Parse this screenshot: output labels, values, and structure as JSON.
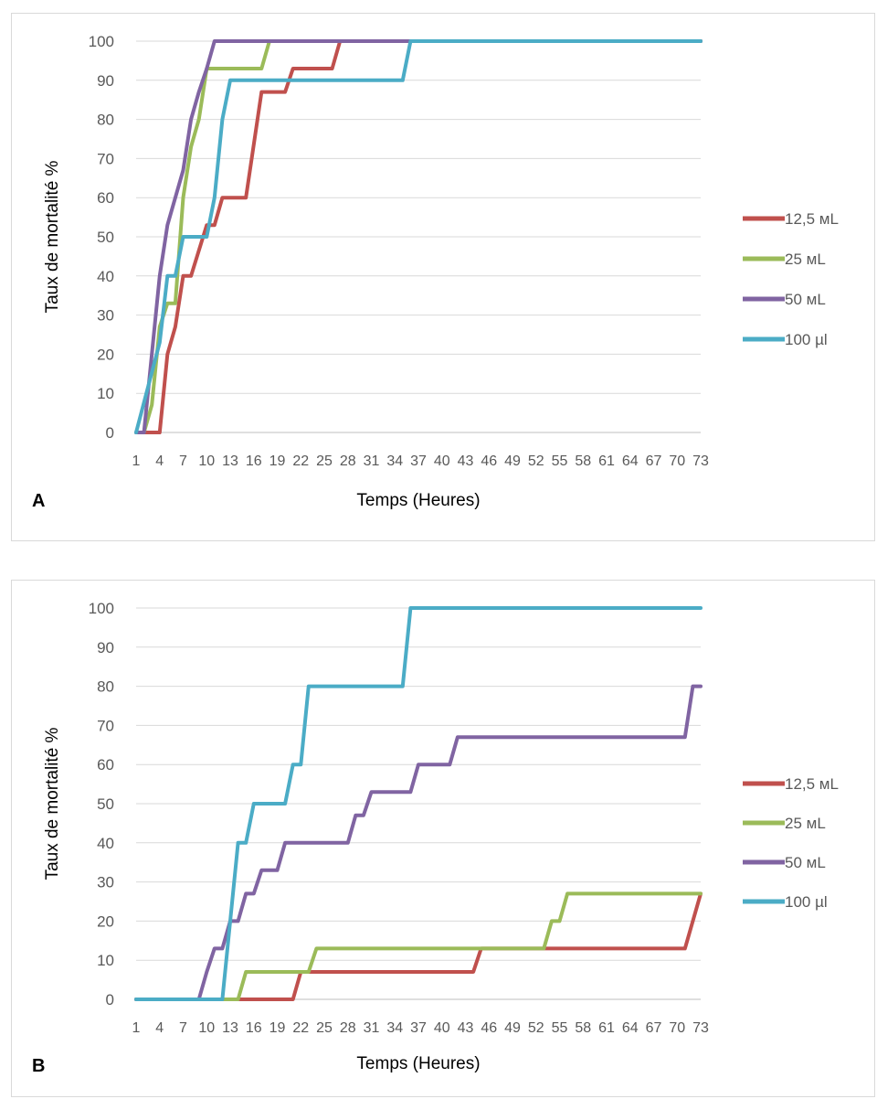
{
  "chart_data": [
    {
      "id": "A",
      "type": "line",
      "panel_label": "A",
      "title": "",
      "xlabel": "Temps (Heures)",
      "ylabel": "Taux de mortalité %",
      "ylim": [
        0,
        100
      ],
      "yticks": [
        0,
        10,
        20,
        30,
        40,
        50,
        60,
        70,
        80,
        90,
        100
      ],
      "xlim": [
        1,
        73
      ],
      "xtick_labels": [
        "1",
        "4",
        "7",
        "10",
        "13",
        "16",
        "19",
        "22",
        "25",
        "28",
        "31",
        "34",
        "37",
        "40",
        "43",
        "46",
        "49",
        "52",
        "55",
        "58",
        "61",
        "64",
        "67",
        "70",
        "73"
      ],
      "grid": true,
      "legend_position": "right",
      "series": [
        {
          "name": "12,5 ᴍL",
          "color": "#c0504d",
          "points": [
            [
              1,
              0
            ],
            [
              2,
              0
            ],
            [
              4,
              0
            ],
            [
              5,
              20
            ],
            [
              6,
              27
            ],
            [
              7,
              40
            ],
            [
              8,
              40
            ],
            [
              10,
              53
            ],
            [
              11,
              53
            ],
            [
              12,
              60
            ],
            [
              15,
              60
            ],
            [
              17,
              87
            ],
            [
              20,
              87
            ],
            [
              21,
              93
            ],
            [
              26,
              93
            ],
            [
              27,
              100
            ],
            [
              73,
              100
            ]
          ]
        },
        {
          "name": "25 ᴍL",
          "color": "#9bbb59",
          "points": [
            [
              1,
              0
            ],
            [
              2,
              0
            ],
            [
              3,
              7
            ],
            [
              4,
              27
            ],
            [
              5,
              33
            ],
            [
              6,
              33
            ],
            [
              7,
              60
            ],
            [
              8,
              73
            ],
            [
              9,
              80
            ],
            [
              10,
              93
            ],
            [
              11,
              93
            ],
            [
              17,
              93
            ],
            [
              18,
              100
            ],
            [
              73,
              100
            ]
          ]
        },
        {
          "name": "50 ᴍL",
          "color": "#8064a2",
          "points": [
            [
              1,
              0
            ],
            [
              2,
              0
            ],
            [
              4,
              40
            ],
            [
              5,
              53
            ],
            [
              6,
              60
            ],
            [
              7,
              67
            ],
            [
              8,
              80
            ],
            [
              9,
              87
            ],
            [
              10,
              93
            ],
            [
              11,
              100
            ],
            [
              73,
              100
            ]
          ]
        },
        {
          "name": "100 µl",
          "color": "#4bacc6",
          "points": [
            [
              1,
              0
            ],
            [
              4,
              23
            ],
            [
              5,
              40
            ],
            [
              6,
              40
            ],
            [
              7,
              50
            ],
            [
              9,
              50
            ],
            [
              10,
              50
            ],
            [
              11,
              60
            ],
            [
              12,
              80
            ],
            [
              13,
              90
            ],
            [
              35,
              90
            ],
            [
              36,
              100
            ],
            [
              73,
              100
            ]
          ]
        }
      ]
    },
    {
      "id": "B",
      "type": "line",
      "panel_label": "B",
      "title": "",
      "xlabel": "Temps (Heures)",
      "ylabel": "Taux de mortalité %",
      "ylim": [
        0,
        100
      ],
      "yticks": [
        0,
        10,
        20,
        30,
        40,
        50,
        60,
        70,
        80,
        90,
        100
      ],
      "xlim": [
        1,
        73
      ],
      "xtick_labels": [
        "1",
        "4",
        "7",
        "10",
        "13",
        "16",
        "19",
        "22",
        "25",
        "28",
        "31",
        "34",
        "37",
        "40",
        "43",
        "46",
        "49",
        "52",
        "55",
        "58",
        "61",
        "64",
        "67",
        "70",
        "73"
      ],
      "grid": true,
      "legend_position": "right",
      "series": [
        {
          "name": "12,5 ᴍL",
          "color": "#c0504d",
          "points": [
            [
              1,
              0
            ],
            [
              21,
              0
            ],
            [
              22,
              7
            ],
            [
              44,
              7
            ],
            [
              45,
              13
            ],
            [
              71,
              13
            ],
            [
              73,
              27
            ]
          ]
        },
        {
          "name": "25 ᴍL",
          "color": "#9bbb59",
          "points": [
            [
              1,
              0
            ],
            [
              13,
              0
            ],
            [
              14,
              0
            ],
            [
              15,
              7
            ],
            [
              23,
              7
            ],
            [
              24,
              13
            ],
            [
              53,
              13
            ],
            [
              54,
              20
            ],
            [
              55,
              20
            ],
            [
              56,
              27
            ],
            [
              73,
              27
            ]
          ]
        },
        {
          "name": "50 ᴍL",
          "color": "#8064a2",
          "points": [
            [
              1,
              0
            ],
            [
              9,
              0
            ],
            [
              10,
              7
            ],
            [
              11,
              13
            ],
            [
              12,
              13
            ],
            [
              13,
              20
            ],
            [
              14,
              20
            ],
            [
              15,
              27
            ],
            [
              16,
              27
            ],
            [
              17,
              33
            ],
            [
              19,
              33
            ],
            [
              20,
              40
            ],
            [
              28,
              40
            ],
            [
              29,
              47
            ],
            [
              30,
              47
            ],
            [
              31,
              53
            ],
            [
              36,
              53
            ],
            [
              37,
              60
            ],
            [
              41,
              60
            ],
            [
              42,
              67
            ],
            [
              71,
              67
            ],
            [
              72,
              80
            ],
            [
              73,
              80
            ]
          ]
        },
        {
          "name": "100 µl",
          "color": "#4bacc6",
          "points": [
            [
              1,
              0
            ],
            [
              12,
              0
            ],
            [
              13,
              20
            ],
            [
              14,
              40
            ],
            [
              15,
              40
            ],
            [
              16,
              50
            ],
            [
              20,
              50
            ],
            [
              21,
              60
            ],
            [
              22,
              60
            ],
            [
              23,
              80
            ],
            [
              35,
              80
            ],
            [
              36,
              100
            ],
            [
              73,
              100
            ]
          ]
        }
      ]
    }
  ]
}
